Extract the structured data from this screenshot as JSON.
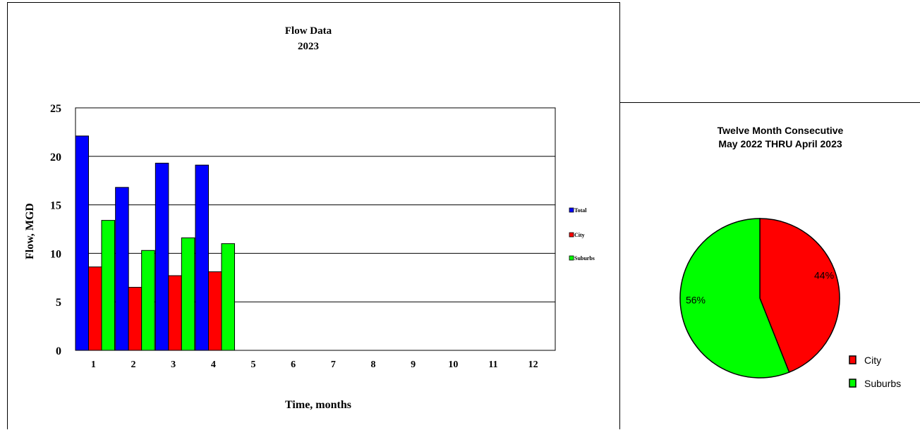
{
  "chart_data": [
    {
      "type": "bar",
      "title": "Flow Data",
      "subtitle": "2023",
      "xlabel": "Time, months",
      "ylabel": "Flow, MGD",
      "ylim": [
        0,
        25
      ],
      "yticks": [
        "0",
        "5",
        "10",
        "15",
        "20",
        "25"
      ],
      "categories": [
        "1",
        "2",
        "3",
        "4",
        "5",
        "6",
        "7",
        "8",
        "9",
        "10",
        "11",
        "12"
      ],
      "grid": true,
      "legend_position": "right",
      "series": [
        {
          "name": "Total",
          "color": "#0000ff",
          "values": [
            22.1,
            16.8,
            19.3,
            19.1,
            null,
            null,
            null,
            null,
            null,
            null,
            null,
            null
          ]
        },
        {
          "name": "City",
          "color": "#ff0000",
          "values": [
            8.6,
            6.5,
            7.7,
            8.1,
            null,
            null,
            null,
            null,
            null,
            null,
            null,
            null
          ]
        },
        {
          "name": "Suburbs",
          "color": "#00ff00",
          "values": [
            13.4,
            10.3,
            11.6,
            11.0,
            null,
            null,
            null,
            null,
            null,
            null,
            null,
            null
          ]
        }
      ]
    },
    {
      "type": "pie",
      "title": "Twelve Month Consecutive",
      "subtitle": "May 2022 THRU April 2023",
      "legend_position": "bottom-right",
      "slices": [
        {
          "name": "City",
          "value": 44,
          "label": "44%",
          "color": "#ff0000"
        },
        {
          "name": "Suburbs",
          "value": 56,
          "label": "56%",
          "color": "#00ff00"
        }
      ]
    }
  ]
}
